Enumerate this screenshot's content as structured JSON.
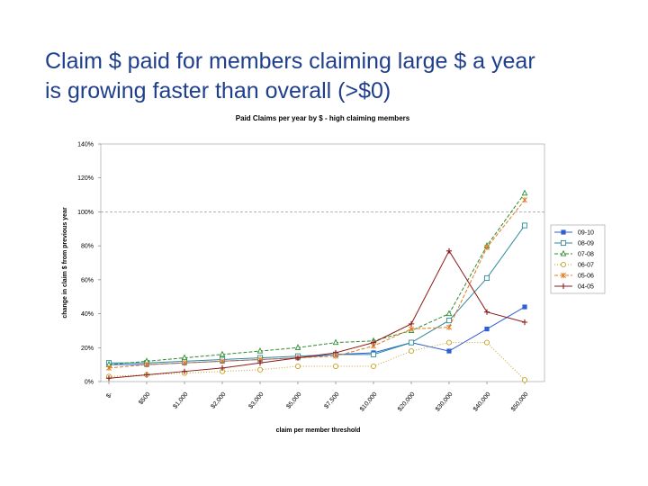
{
  "slide": {
    "title_line1": "Claim $ paid for members claiming large $ a year",
    "title_line2": "is growing faster than overall (>$0)"
  },
  "chart_data": {
    "type": "line",
    "title": "Paid Claims per year by $ - high claiming members",
    "xlabel": "claim per member threshold",
    "ylabel": "change in claim $ from previous year",
    "categories": [
      "$-",
      "$500",
      "$1,000",
      "$2,000",
      "$3,000",
      "$5,000",
      "$7,500",
      "$10,000",
      "$20,000",
      "$30,000",
      "$40,000",
      "$50,000"
    ],
    "yticks": [
      "0%",
      "20%",
      "40%",
      "60%",
      "80%",
      "100%",
      "120%",
      "140%"
    ],
    "ylim": [
      0,
      140
    ],
    "reference_line": 100,
    "legend_position": "right",
    "series": [
      {
        "name": "09-10",
        "color": "#2e5fd6",
        "marker": "square-filled",
        "dash": "",
        "values": [
          10,
          10,
          11,
          12,
          13,
          14,
          16,
          17,
          23,
          18,
          31,
          44
        ]
      },
      {
        "name": "08-09",
        "color": "#2f8a9a",
        "marker": "square-open",
        "dash": "",
        "values": [
          11,
          11,
          12,
          13,
          14,
          15,
          16,
          16,
          23,
          36,
          61,
          92
        ]
      },
      {
        "name": "07-08",
        "color": "#2e8b2e",
        "marker": "triangle-open",
        "dash": "4,2",
        "values": [
          10,
          12,
          14,
          16,
          18,
          20,
          23,
          24,
          30,
          40,
          80,
          111
        ]
      },
      {
        "name": "06-07",
        "color": "#c9a227",
        "marker": "circle-open",
        "dash": "1,2",
        "values": [
          3,
          4,
          5,
          6,
          7,
          9,
          9,
          9,
          18,
          23,
          23,
          1
        ]
      },
      {
        "name": "05-06",
        "color": "#e07b20",
        "marker": "star",
        "dash": "4,2",
        "values": [
          8,
          10,
          11,
          12,
          13,
          14,
          15,
          21,
          31,
          32,
          79,
          107
        ]
      },
      {
        "name": "04-05",
        "color": "#8b1a1a",
        "marker": "plus",
        "dash": "",
        "values": [
          2,
          4,
          6,
          8,
          11,
          14,
          17,
          23,
          34,
          77,
          41,
          35
        ]
      }
    ]
  }
}
